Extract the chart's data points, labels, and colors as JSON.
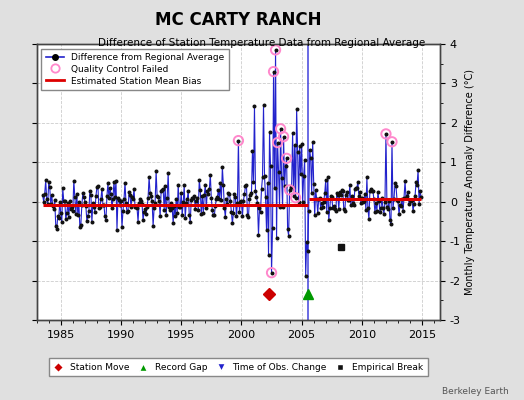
{
  "title": "MC CARTY RANCH",
  "subtitle": "Difference of Station Temperature Data from Regional Average",
  "ylabel_right": "Monthly Temperature Anomaly Difference (°C)",
  "watermark": "Berkeley Earth",
  "xlim": [
    1983.0,
    2016.5
  ],
  "ylim": [
    -3.0,
    4.0
  ],
  "bias_before": -0.08,
  "bias_after": 0.07,
  "bias_split": 2005.5,
  "station_move_x": 2002.3,
  "record_gap_x": 2005.5,
  "marker_y": -2.35,
  "empirical_break_x": 2008.3,
  "empirical_break_y": -1.15,
  "background_color": "#e0e0e0",
  "plot_bg_color": "#ffffff",
  "line_color": "#2222cc",
  "dot_color": "#111111",
  "bias_color": "#dd0000",
  "qc_color": "#ff88cc",
  "vline_color": "#4444dd",
  "vline_x": 2005.5,
  "xticks": [
    1985,
    1990,
    1995,
    2000,
    2005,
    2010,
    2015
  ],
  "yticks": [
    -3,
    -2,
    -1,
    0,
    1,
    2,
    3,
    4
  ],
  "seed": 42
}
